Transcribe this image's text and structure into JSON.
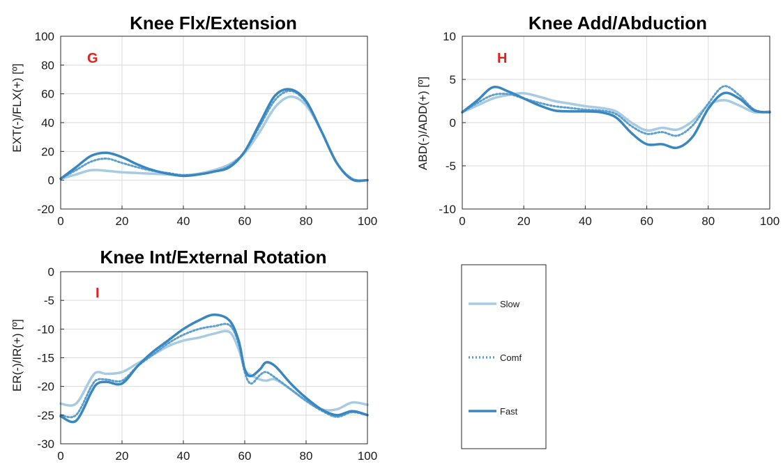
{
  "chart_data": [
    {
      "type": "line",
      "title": "Knee Flx/Extension",
      "ylabel": "EXT(-)/FLX(+) [º]",
      "panel_letter": "G",
      "xlim": [
        0,
        100
      ],
      "ylim": [
        -20,
        100
      ],
      "xticks": [
        "0",
        "20",
        "40",
        "60",
        "80",
        "100"
      ],
      "yticks": [
        "-20",
        "0",
        "20",
        "40",
        "60",
        "80",
        "100"
      ],
      "grid": true,
      "x": [
        0,
        5,
        10,
        15,
        20,
        25,
        30,
        35,
        40,
        45,
        50,
        55,
        60,
        65,
        70,
        75,
        80,
        85,
        90,
        95,
        100
      ],
      "series": [
        {
          "name": "Slow",
          "values": [
            1,
            4,
            7,
            6.5,
            5.5,
            5,
            4.5,
            4,
            3.5,
            4.5,
            7,
            11,
            19,
            34,
            51,
            58,
            52,
            34,
            12,
            1,
            0
          ]
        },
        {
          "name": "Comf",
          "values": [
            1,
            7,
            13,
            15,
            12,
            9,
            6.5,
            5,
            3.5,
            4,
            6,
            10,
            20,
            38,
            56,
            62,
            54,
            34,
            12,
            1,
            0
          ]
        },
        {
          "name": "Fast",
          "values": [
            1,
            9,
            17,
            19,
            16,
            11,
            7,
            4.5,
            3,
            4,
            6,
            9,
            20,
            40,
            59,
            63,
            55,
            34,
            12,
            0.5,
            0
          ]
        }
      ]
    },
    {
      "type": "line",
      "title": "Knee Add/Abduction",
      "ylabel": "ABD(-)/ADD(+) [º]",
      "panel_letter": "H",
      "xlim": [
        0,
        100
      ],
      "ylim": [
        -10,
        10
      ],
      "xticks": [
        "0",
        "20",
        "40",
        "60",
        "80",
        "100"
      ],
      "yticks": [
        "-10",
        "-5",
        "0",
        "5",
        "10"
      ],
      "grid": true,
      "x": [
        0,
        5,
        10,
        15,
        20,
        25,
        30,
        35,
        40,
        45,
        50,
        55,
        60,
        65,
        70,
        75,
        80,
        85,
        90,
        95,
        100
      ],
      "series": [
        {
          "name": "Slow",
          "values": [
            1.2,
            2,
            2.8,
            3.2,
            3.4,
            3,
            2.5,
            2.2,
            1.9,
            1.7,
            1.3,
            0,
            -0.9,
            -0.6,
            -0.8,
            0.2,
            2,
            2.6,
            2,
            1.2,
            1.3
          ]
        },
        {
          "name": "Comf",
          "values": [
            1.2,
            2.3,
            3.2,
            3.3,
            2.8,
            2.3,
            1.9,
            1.7,
            1.5,
            1.4,
            1,
            -0.4,
            -1.3,
            -1.1,
            -1.5,
            -0.3,
            2.2,
            4.2,
            3.2,
            1.5,
            1.2
          ]
        },
        {
          "name": "Fast",
          "values": [
            1.2,
            2.6,
            4.1,
            3.6,
            2.8,
            2,
            1.4,
            1.3,
            1.3,
            1.2,
            0.6,
            -1.2,
            -2.5,
            -2.5,
            -2.9,
            -1.6,
            1.6,
            3.4,
            2.8,
            1.4,
            1.2
          ]
        }
      ]
    },
    {
      "type": "line",
      "title": "Knee Int/External Rotation",
      "ylabel": "ER(-)/IR(+) [º]",
      "panel_letter": "I",
      "xlim": [
        0,
        100
      ],
      "ylim": [
        -30,
        0
      ],
      "xticks": [
        "0",
        "20",
        "40",
        "60",
        "80",
        "100"
      ],
      "yticks": [
        "-30",
        "-25",
        "-20",
        "-15",
        "-10",
        "-5",
        "0"
      ],
      "grid": true,
      "x": [
        0,
        5,
        10,
        12,
        15,
        20,
        25,
        30,
        35,
        40,
        45,
        50,
        55,
        58,
        60,
        62,
        65,
        67,
        70,
        75,
        80,
        85,
        90,
        95,
        100
      ],
      "series": [
        {
          "name": "Slow",
          "values": [
            -23,
            -23,
            -18.5,
            -17.5,
            -17.8,
            -17.5,
            -16,
            -14.5,
            -13,
            -12,
            -11.5,
            -10.8,
            -10.5,
            -13.5,
            -17,
            -18,
            -18.8,
            -19,
            -18.8,
            -20.5,
            -22.5,
            -24,
            -24,
            -22.8,
            -23.2
          ]
        },
        {
          "name": "Comf",
          "values": [
            -25,
            -25,
            -20,
            -18.8,
            -18.8,
            -19,
            -16.5,
            -14.5,
            -12.5,
            -11,
            -10,
            -9.5,
            -9.3,
            -12.5,
            -17.5,
            -19.5,
            -18,
            -17.5,
            -18.5,
            -20.5,
            -22.5,
            -24.2,
            -25.3,
            -24.5,
            -25
          ]
        },
        {
          "name": "Fast",
          "values": [
            -25.2,
            -26,
            -21,
            -19.5,
            -19.2,
            -19.5,
            -16.5,
            -14,
            -12,
            -10,
            -8.5,
            -7.5,
            -8.5,
            -12,
            -17,
            -18.2,
            -17,
            -15.8,
            -16.5,
            -19.5,
            -22,
            -24,
            -25,
            -24.3,
            -25
          ]
        }
      ]
    }
  ],
  "legend": {
    "items": [
      {
        "label": "Slow",
        "color": "#a6cbe3",
        "style": "solid"
      },
      {
        "label": "Comf",
        "color": "#5b9fd0",
        "style": "dotted"
      },
      {
        "label": "Fast",
        "color": "#3a87c0",
        "style": "solid"
      }
    ]
  },
  "colors": {
    "Slow": "#a6cbe3",
    "Comf": "#5b9fd0",
    "Fast": "#3a87c0",
    "panel_letter": "#e3201b",
    "grid": "#d9d9d9",
    "axis": "#262626"
  }
}
